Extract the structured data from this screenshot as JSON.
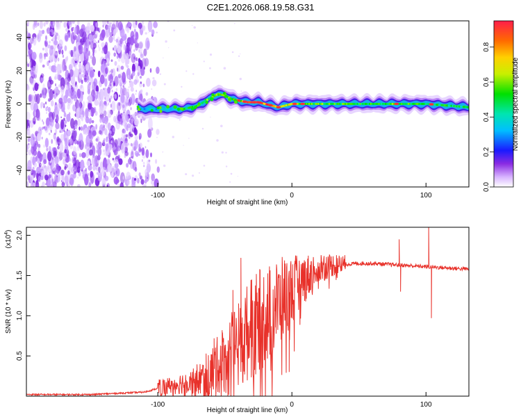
{
  "title": "C2E1.2026.068.19.58.G31",
  "chart_data": [
    {
      "type": "heatmap",
      "name": "spectrogram",
      "xlabel": "Height of straight line (km)",
      "ylabel": "Frequency (Hz)",
      "xlim": [
        -198,
        132
      ],
      "ylim": [
        -50,
        50
      ],
      "xticks": [
        -100,
        0,
        100
      ],
      "xtick_labels": [
        "-100",
        "0",
        "100"
      ],
      "yticks": [
        -40,
        -20,
        0,
        20,
        40
      ],
      "ytick_labels": [
        "-40",
        "-20",
        "0",
        "20",
        "40"
      ],
      "colorbar": {
        "label": "Normalized spectral amplitude",
        "range": [
          0.0,
          0.95
        ],
        "ticks": [
          0.0,
          0.2,
          0.4,
          0.6,
          0.8
        ],
        "tick_labels": [
          "0.0",
          "0.2",
          "0.4",
          "0.6",
          "0.8"
        ]
      },
      "ridge": {
        "x": [
          -115,
          -95,
          -80,
          -70,
          -62,
          -55,
          -50,
          -45,
          -40,
          -33,
          -25,
          -15,
          -10,
          -5,
          0,
          20,
          50,
          80,
          100,
          132
        ],
        "y": [
          -3,
          -3,
          -3,
          -1,
          3,
          6,
          5,
          3,
          2,
          1,
          1,
          -1,
          -2,
          -1,
          0,
          0,
          0,
          0,
          0,
          -2
        ],
        "amplitude": [
          0.3,
          0.35,
          0.45,
          0.5,
          0.55,
          0.55,
          0.6,
          0.55,
          0.85,
          0.85,
          0.9,
          0.85,
          0.6,
          0.7,
          0.65,
          0.55,
          0.5,
          0.55,
          0.5,
          0.45
        ]
      },
      "noise_region_xmax": -110
    },
    {
      "type": "line",
      "name": "snr",
      "xlabel": "Height of straight line (km)",
      "ylabel": "SNR (10 * v/v)",
      "multiplier_label": "(x10",
      "multiplier_exponent": "4",
      "multiplier_close": ")",
      "xlim": [
        -198,
        132
      ],
      "ylim": [
        0,
        2.1
      ],
      "xticks": [
        -100,
        0,
        100
      ],
      "xtick_labels": [
        "-100",
        "0",
        "100"
      ],
      "yticks": [
        0.5,
        1.0,
        1.5,
        2.0
      ],
      "ytick_labels": [
        "0.5",
        "1.0",
        "1.5",
        "2.0"
      ],
      "color": "#e8312a",
      "series": [
        {
          "name": "SNR",
          "x": [
            -198,
            -150,
            -110,
            -95,
            -85,
            -75,
            -65,
            -60,
            -55,
            -50,
            -45,
            -40,
            -35,
            -30,
            -25,
            -20,
            -15,
            -10,
            -5,
            0,
            5,
            10,
            15,
            20,
            30,
            40,
            50,
            60,
            70,
            80,
            90,
            100,
            110,
            120,
            132
          ],
          "y": [
            0.02,
            0.02,
            0.05,
            0.12,
            0.15,
            0.2,
            0.22,
            0.3,
            0.4,
            0.45,
            0.55,
            0.6,
            0.75,
            0.85,
            0.9,
            1.0,
            1.05,
            1.15,
            1.25,
            1.32,
            1.4,
            1.47,
            1.53,
            1.6,
            1.63,
            1.64,
            1.65,
            1.65,
            1.64,
            1.63,
            1.62,
            1.61,
            1.6,
            1.59,
            1.58
          ]
        }
      ],
      "spikes": {
        "x": [
          -80,
          -72,
          -64,
          -58,
          -52,
          -44,
          -38,
          -30,
          -24,
          -12,
          -2,
          2,
          80,
          81,
          102,
          104
        ],
        "y": [
          0.16,
          0.25,
          0.53,
          0.72,
          0.82,
          1.32,
          1.72,
          1.45,
          1.58,
          1.22,
          0.3,
          1.65,
          1.95,
          1.3,
          2.1,
          0.97
        ]
      }
    }
  ]
}
